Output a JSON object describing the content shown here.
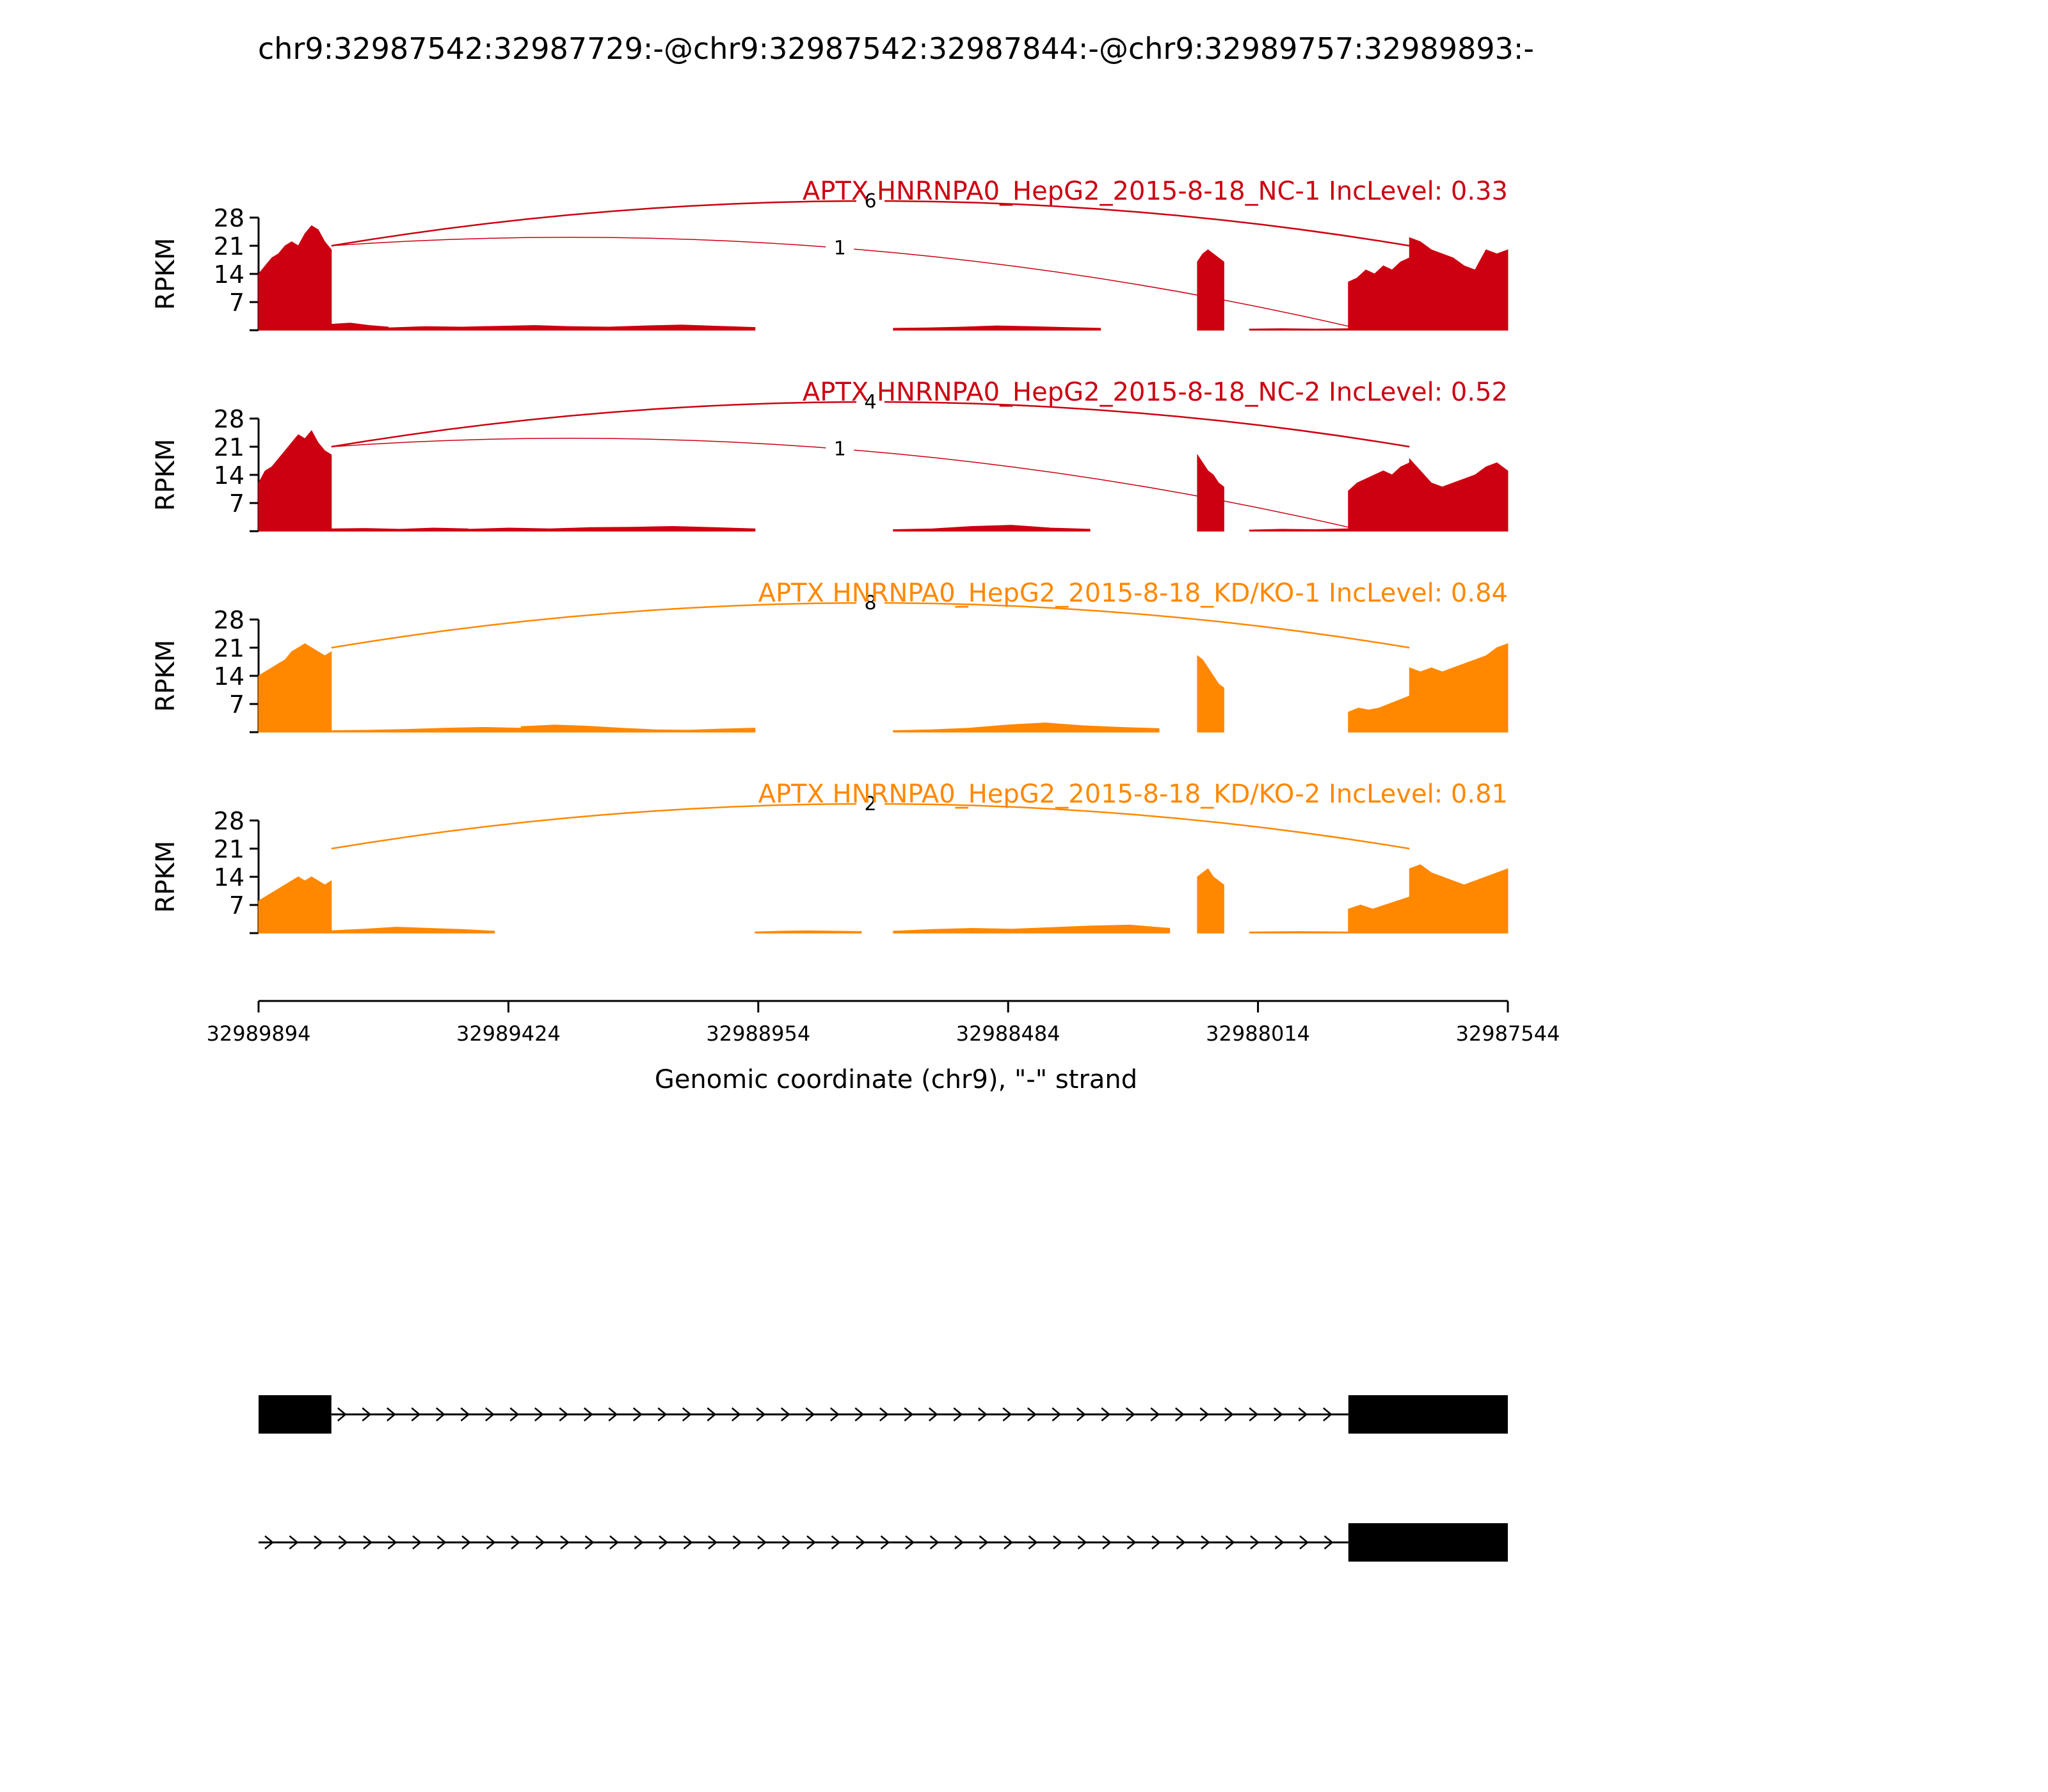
{
  "title": "chr9:32987542:32987729:-@chr9:32987542:32987844:-@chr9:32989757:32989893:-",
  "chart_data": {
    "type": "area",
    "ylabel": "RPKM",
    "xlabel": "Genomic coordinate (chr9), \"-\" strand",
    "x_range": [
      32989894,
      32987544
    ],
    "x_ticks": [
      32989894,
      32989424,
      32988954,
      32988484,
      32988014,
      32987544
    ],
    "x_tick_labels": [
      "32989894",
      "32989424",
      "32988954",
      "32988484",
      "32988014",
      "32987544"
    ],
    "y_range": [
      0,
      28
    ],
    "y_ticks": [
      7,
      14,
      21,
      28
    ],
    "y_tick_labels": [
      "7",
      "14",
      "21",
      "28"
    ],
    "colors": {
      "NC": "#cc0011",
      "KD": "#ff8800",
      "gene": "#000000"
    },
    "tracks": [
      {
        "label": "APTX HNRNPA0_HepG2_2015-8-18_NC-1 IncLevel: 0.33",
        "group": "NC",
        "coverage": [
          {
            "start": 32989894,
            "end": 32989757,
            "values": [
              14,
              16,
              18,
              19,
              21,
              22,
              21,
              24,
              26,
              25,
              22,
              20
            ]
          },
          {
            "start": 32989757,
            "end": 32989650,
            "values": [
              1.5,
              1.8,
              1.2,
              0.8
            ]
          },
          {
            "start": 32989650,
            "end": 32988960,
            "values": [
              0.6,
              0.9,
              0.8,
              1.0,
              1.2,
              0.9,
              0.8,
              1.1,
              1.3,
              1.0,
              0.7
            ]
          },
          {
            "start": 32988700,
            "end": 32988310,
            "values": [
              0.5,
              0.6,
              0.8,
              1.1,
              0.9,
              0.7,
              0.5
            ]
          },
          {
            "start": 32988128,
            "end": 32988078,
            "values": [
              17,
              19,
              20,
              19,
              18,
              17
            ]
          },
          {
            "start": 32988030,
            "end": 32987844,
            "values": [
              0.3,
              0.4,
              0.3,
              0.4
            ]
          },
          {
            "start": 32987844,
            "end": 32987729,
            "values": [
              12,
              13,
              15,
              14,
              16,
              15,
              17,
              18
            ]
          },
          {
            "start": 32987729,
            "end": 32987544,
            "values": [
              23,
              22,
              20,
              19,
              18,
              16,
              15,
              20,
              19,
              20
            ]
          }
        ],
        "junctions": [
          {
            "from": 32989757,
            "to": 32987729,
            "reads": "6"
          },
          {
            "from": 32989757,
            "to": 32987844,
            "reads": "1"
          }
        ]
      },
      {
        "label": "APTX HNRNPA0_HepG2_2015-8-18_NC-2 IncLevel: 0.52",
        "group": "NC",
        "coverage": [
          {
            "start": 32989894,
            "end": 32989757,
            "values": [
              12,
              15,
              16,
              18,
              20,
              22,
              24,
              23,
              25,
              22,
              20,
              19
            ]
          },
          {
            "start": 32989757,
            "end": 32989500,
            "values": [
              0.6,
              0.7,
              0.5,
              0.8,
              0.6
            ]
          },
          {
            "start": 32989500,
            "end": 32988960,
            "values": [
              0.5,
              0.8,
              0.6,
              0.9,
              1.0,
              1.2,
              0.9,
              0.6
            ]
          },
          {
            "start": 32988700,
            "end": 32988330,
            "values": [
              0.4,
              0.6,
              1.2,
              1.5,
              0.8,
              0.5
            ]
          },
          {
            "start": 32988128,
            "end": 32988078,
            "values": [
              19,
              17,
              15,
              14,
              12,
              11
            ]
          },
          {
            "start": 32988030,
            "end": 32987844,
            "values": [
              0.3,
              0.5,
              0.4,
              0.6
            ]
          },
          {
            "start": 32987844,
            "end": 32987729,
            "values": [
              10,
              12,
              13,
              14,
              15,
              14,
              16,
              17
            ]
          },
          {
            "start": 32987729,
            "end": 32987544,
            "values": [
              18,
              15,
              12,
              11,
              12,
              13,
              14,
              16,
              17,
              15
            ]
          }
        ],
        "junctions": [
          {
            "from": 32989757,
            "to": 32987729,
            "reads": "4"
          },
          {
            "from": 32989757,
            "to": 32987844,
            "reads": "1"
          }
        ]
      },
      {
        "label": "APTX HNRNPA0_HepG2_2015-8-18_KD/KO-1 IncLevel: 0.84",
        "group": "KD",
        "coverage": [
          {
            "start": 32989894,
            "end": 32989757,
            "values": [
              14,
              15,
              16,
              17,
              18,
              20,
              21,
              22,
              21,
              20,
              19,
              20
            ]
          },
          {
            "start": 32989757,
            "end": 32989400,
            "values": [
              0.4,
              0.5,
              0.7,
              1.0,
              1.2,
              1.0
            ]
          },
          {
            "start": 32989400,
            "end": 32988960,
            "values": [
              1.4,
              1.8,
              1.5,
              1.0,
              0.6,
              0.5,
              0.8,
              1.0
            ]
          },
          {
            "start": 32988700,
            "end": 32988200,
            "values": [
              0.4,
              0.6,
              1.0,
              1.8,
              2.3,
              1.6,
              1.2,
              0.9
            ]
          },
          {
            "start": 32988128,
            "end": 32988078,
            "values": [
              19,
              18,
              16,
              14,
              12,
              11
            ]
          },
          {
            "start": 32987844,
            "end": 32987729,
            "values": [
              5,
              6,
              5.5,
              6,
              7,
              8,
              9
            ]
          },
          {
            "start": 32987729,
            "end": 32987544,
            "values": [
              16,
              15,
              16,
              15,
              16,
              17,
              18,
              19,
              21,
              22
            ]
          }
        ],
        "junctions": [
          {
            "from": 32989757,
            "to": 32987729,
            "reads": "8"
          }
        ]
      },
      {
        "label": "APTX HNRNPA0_HepG2_2015-8-18_KD/KO-2 IncLevel: 0.81",
        "group": "KD",
        "coverage": [
          {
            "start": 32989894,
            "end": 32989757,
            "values": [
              8,
              9,
              10,
              11,
              12,
              13,
              14,
              13,
              14,
              13,
              12,
              13
            ]
          },
          {
            "start": 32989757,
            "end": 32989450,
            "values": [
              0.6,
              1.0,
              1.5,
              1.2,
              0.9,
              0.5
            ]
          },
          {
            "start": 32988960,
            "end": 32988760,
            "values": [
              0.3,
              0.5,
              0.6,
              0.5,
              0.4
            ]
          },
          {
            "start": 32988700,
            "end": 32988180,
            "values": [
              0.5,
              0.9,
              1.2,
              1.0,
              1.4,
              1.8,
              2.0,
              1.2
            ]
          },
          {
            "start": 32988128,
            "end": 32988078,
            "values": [
              14,
              15,
              16,
              14,
              13,
              12
            ]
          },
          {
            "start": 32988030,
            "end": 32987844,
            "values": [
              0.3,
              0.4,
              0.3
            ]
          },
          {
            "start": 32987844,
            "end": 32987729,
            "values": [
              6,
              7,
              6,
              7,
              8,
              9
            ]
          },
          {
            "start": 32987729,
            "end": 32987544,
            "values": [
              16,
              17,
              15,
              14,
              13,
              12,
              13,
              14,
              15,
              16
            ]
          }
        ],
        "junctions": [
          {
            "from": 32989757,
            "to": 32987729,
            "reads": "2"
          }
        ]
      }
    ],
    "transcripts": [
      {
        "exons": [
          [
            32989894,
            32989757
          ],
          [
            32987844,
            32987544
          ]
        ],
        "intron": [
          32989757,
          32987844
        ]
      },
      {
        "exons": [
          [
            32987844,
            32987544
          ]
        ],
        "intron": [
          32989894,
          32987844
        ]
      }
    ]
  }
}
